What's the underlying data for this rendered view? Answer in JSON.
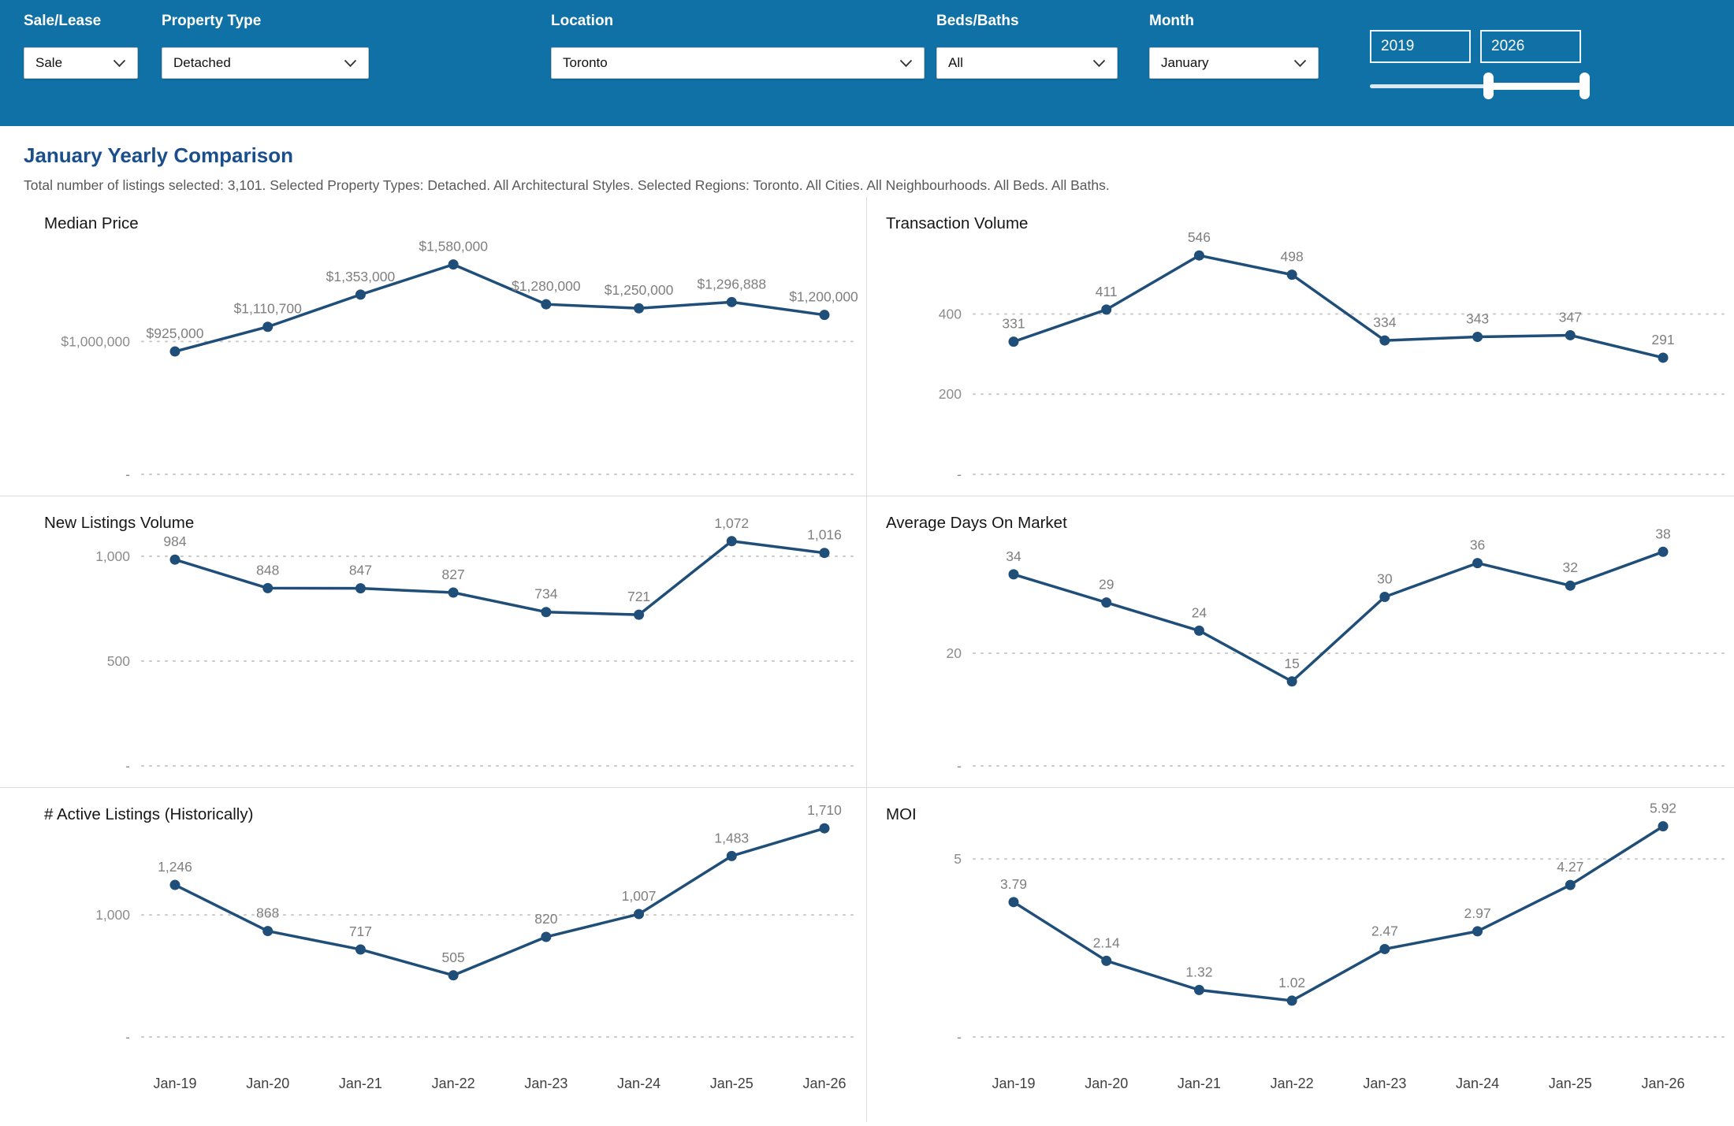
{
  "filters": {
    "sale_lease": {
      "label": "Sale/Lease",
      "value": "Sale"
    },
    "property_type": {
      "label": "Property Type",
      "value": "Detached"
    },
    "location": {
      "label": "Location",
      "value": "Toronto"
    },
    "beds_baths": {
      "label": "Beds/Baths",
      "value": "All"
    },
    "month": {
      "label": "Month",
      "value": "January"
    },
    "year_range": {
      "start": "2019",
      "end": "2026"
    }
  },
  "page": {
    "title": "January Yearly Comparison",
    "subtitle": "Total number of listings selected: 3,101. Selected Property Types: Detached. All Architectural Styles. Selected Regions: Toronto. All Cities. All Neighbourhoods. All Beds. All Baths."
  },
  "colors": {
    "header_bg": "#1071A6",
    "accent": "#1F4E79",
    "title": "#1B4F8C",
    "value_label": "#7F7F7F",
    "axis_label": "#8C8C8C",
    "x_label": "#404040",
    "grid": "#C9C9C9"
  },
  "chart_data": [
    {
      "type": "line",
      "title": "Median Price",
      "categories": [
        "Jan-19",
        "Jan-20",
        "Jan-21",
        "Jan-22",
        "Jan-23",
        "Jan-24",
        "Jan-25",
        "Jan-26"
      ],
      "values": [
        925000,
        1110700,
        1353000,
        1580000,
        1280000,
        1250000,
        1296888,
        1200000
      ],
      "labels": [
        "$925,000",
        "$1,110,700",
        "$1,353,000",
        "$1,580,000",
        "$1,280,000",
        "$1,250,000",
        "$1,296,888",
        "$1,200,000"
      ],
      "gridlines": [
        {
          "value": 1000000,
          "label": "$1,000,000"
        },
        {
          "value": 0,
          "label": "-"
        }
      ],
      "ylim": [
        0,
        1720000
      ],
      "show_x_labels": false
    },
    {
      "type": "line",
      "title": "Transaction Volume",
      "categories": [
        "Jan-19",
        "Jan-20",
        "Jan-21",
        "Jan-22",
        "Jan-23",
        "Jan-24",
        "Jan-25",
        "Jan-26"
      ],
      "values": [
        331,
        411,
        546,
        498,
        334,
        343,
        347,
        291
      ],
      "labels": [
        "331",
        "411",
        "546",
        "498",
        "334",
        "343",
        "347",
        "291"
      ],
      "gridlines": [
        {
          "value": 400,
          "label": "400"
        },
        {
          "value": 200,
          "label": "200"
        },
        {
          "value": 0,
          "label": "-"
        }
      ],
      "ylim": [
        0,
        570
      ],
      "show_x_labels": false
    },
    {
      "type": "line",
      "title": "New Listings Volume",
      "categories": [
        "Jan-19",
        "Jan-20",
        "Jan-21",
        "Jan-22",
        "Jan-23",
        "Jan-24",
        "Jan-25",
        "Jan-26"
      ],
      "values": [
        984,
        848,
        847,
        827,
        734,
        721,
        1072,
        1016
      ],
      "labels": [
        "984",
        "848",
        "847",
        "827",
        "734",
        "721",
        "1,072",
        "1,016"
      ],
      "gridlines": [
        {
          "value": 1000,
          "label": "1,000"
        },
        {
          "value": 500,
          "label": "500"
        },
        {
          "value": 0,
          "label": "-"
        }
      ],
      "ylim": [
        0,
        1075
      ],
      "show_x_labels": false
    },
    {
      "type": "line",
      "title": "Average Days On Market",
      "categories": [
        "Jan-19",
        "Jan-20",
        "Jan-21",
        "Jan-22",
        "Jan-23",
        "Jan-24",
        "Jan-25",
        "Jan-26"
      ],
      "values": [
        34,
        29,
        24,
        15,
        30,
        36,
        32,
        38
      ],
      "labels": [
        "34",
        "29",
        "24",
        "15",
        "30",
        "36",
        "32",
        "38"
      ],
      "gridlines": [
        {
          "value": 20,
          "label": "20"
        },
        {
          "value": 0,
          "label": "-"
        }
      ],
      "ylim": [
        0,
        40
      ],
      "show_x_labels": false
    },
    {
      "type": "line",
      "title": "# Active Listings (Historically)",
      "categories": [
        "Jan-19",
        "Jan-20",
        "Jan-21",
        "Jan-22",
        "Jan-23",
        "Jan-24",
        "Jan-25",
        "Jan-26"
      ],
      "values": [
        1246,
        868,
        717,
        505,
        820,
        1007,
        1483,
        1710
      ],
      "labels": [
        "1,246",
        "868",
        "717",
        "505",
        "820",
        "1,007",
        "1,483",
        "1,710"
      ],
      "gridlines": [
        {
          "value": 1000,
          "label": "1,000"
        },
        {
          "value": 0,
          "label": "-"
        }
      ],
      "ylim": [
        0,
        1750
      ],
      "show_x_labels": true
    },
    {
      "type": "line",
      "title": "MOI",
      "categories": [
        "Jan-19",
        "Jan-20",
        "Jan-21",
        "Jan-22",
        "Jan-23",
        "Jan-24",
        "Jan-25",
        "Jan-26"
      ],
      "values": [
        3.79,
        2.14,
        1.32,
        1.02,
        2.47,
        2.97,
        4.27,
        5.92
      ],
      "labels": [
        "3.79",
        "2.14",
        "1.32",
        "1.02",
        "2.47",
        "2.97",
        "4.27",
        "5.92"
      ],
      "gridlines": [
        {
          "value": 5,
          "label": "5"
        },
        {
          "value": 0,
          "label": "-"
        }
      ],
      "ylim": [
        0,
        6.0
      ],
      "show_x_labels": true
    }
  ]
}
